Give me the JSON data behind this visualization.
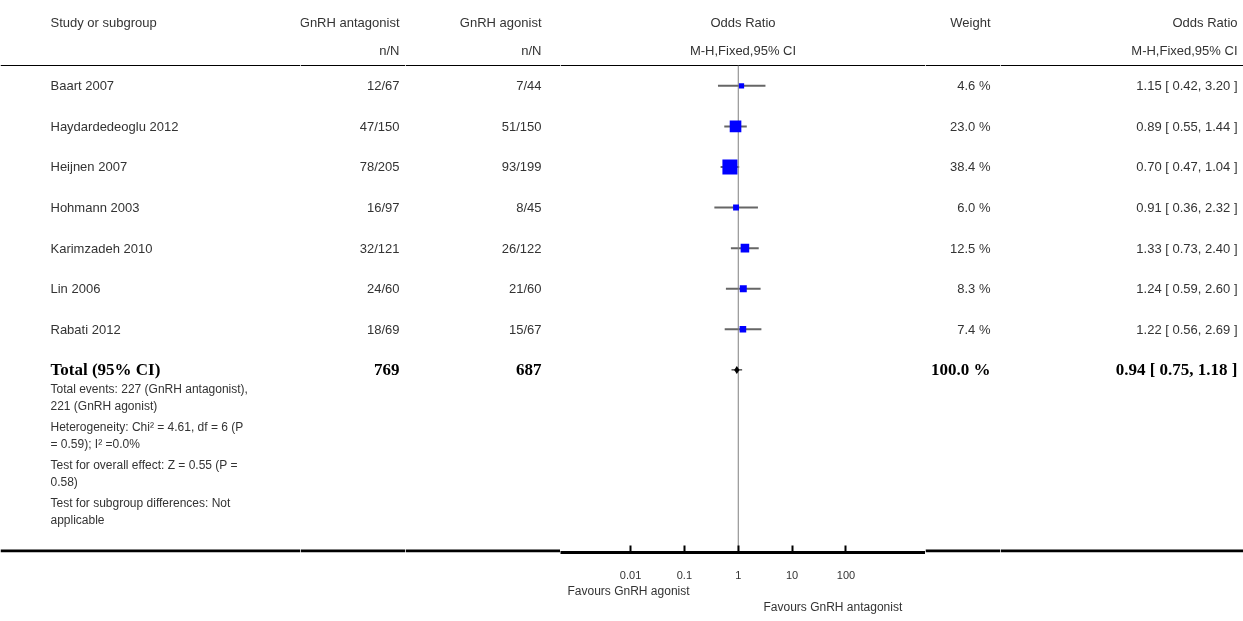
{
  "chart_data": [
    {
      "type": "other",
      "title": "Study or subgroup",
      "categories": [
        "Baart 2007",
        "Haydardedeoglu 2012",
        "Heijnen 2007",
        "Hohmann 2003",
        "Karimzadeh 2010",
        "Lin 2006",
        "Rabati 2012",
        "Total (95% CI)"
      ],
      "annotations": [
        "Total events: 227 (GnRH antagonist), 221 (GnRH agonist)",
        "Heterogeneity: Chi² = 4.61, df = 6 (P = 0.59); I² =0.0%",
        "Test for overall effect: Z = 0.55 (P = 0.58)",
        "Test for subgroup differences: Not applicable"
      ]
    },
    {
      "type": "other",
      "title": "GnRH antagonist",
      "subtitle": "n/N",
      "categories": [
        "12/67",
        "47/150",
        "78/205",
        "16/97",
        "32/121",
        "24/60",
        "18/69",
        "769"
      ]
    },
    {
      "type": "other",
      "title": "GnRH agonist",
      "subtitle": "n/N",
      "categories": [
        "7/44",
        "51/150",
        "93/199",
        "8/45",
        "26/122",
        "21/60",
        "15/67",
        "687"
      ]
    },
    {
      "type": "bubble",
      "title": "Odds Ratio",
      "subtitle": "M-H,Fixed,95% CI",
      "orientation": "horizontal",
      "log": "x",
      "marker": "square",
      "tick_labels": "x",
      "grid": false,
      "categories": [
        null,
        null,
        null,
        null,
        null,
        null,
        null,
        null,
        null,
        null,
        null,
        null
      ],
      "xlim": [
        0.0005,
        3000
      ],
      "xticks": [
        0.01,
        0.1,
        1,
        10,
        100
      ],
      "ref_lines": [
        {
          "axis": "x",
          "value": 1,
          "color": "#808080"
        }
      ],
      "annotations": [
        "Favours GnRH agonist",
        "Favours GnRH antagonist"
      ],
      "series": [
        {
          "type": "bubble",
          "color": "#0000ff",
          "values": [
            1.15,
            0.89,
            0.7,
            0.91,
            1.33,
            1.24,
            1.22,
            null,
            null,
            null,
            null,
            null
          ],
          "sizes": [
            0.12,
            0.6,
            1,
            0.156,
            0.326,
            0.216,
            0.193,
            null,
            null,
            null,
            null,
            null
          ],
          "errors": [
            [
              0.42,
              3.2
            ],
            [
              0.55,
              1.44
            ],
            [
              0.47,
              1.04
            ],
            [
              0.36,
              2.32
            ],
            [
              0.73,
              2.4
            ],
            [
              0.59,
              2.6
            ],
            [
              0.56,
              2.69
            ],
            null,
            null,
            null,
            null,
            null
          ]
        },
        {
          "type": "scatter",
          "marker": "diamond",
          "color": "#000000",
          "values": [
            null,
            null,
            null,
            null,
            null,
            null,
            null,
            0.94,
            null,
            null,
            null,
            null
          ],
          "errors": [
            null,
            null,
            null,
            null,
            null,
            null,
            null,
            [
              0.75,
              1.18
            ],
            null,
            null,
            null,
            null
          ]
        }
      ]
    },
    {
      "type": "other",
      "title": "Weight",
      "categories": [
        "4.6 %",
        "23.0 %",
        "38.4 %",
        "6.0 %",
        "12.5 %",
        "8.3 %",
        "7.4 %",
        "100.0 %"
      ]
    },
    {
      "type": "other",
      "title": "Odds Ratio",
      "subtitle": "M-H,Fixed,95% CI",
      "categories": [
        "1.15 [ 0.42, 3.20 ]",
        "0.89 [ 0.55, 1.44 ]",
        "0.70 [ 0.47, 1.04 ]",
        "0.91 [ 0.36, 2.32 ]",
        "1.33 [ 0.73, 2.40 ]",
        "1.24 [ 0.59, 2.60 ]",
        "1.22 [ 0.56, 2.69 ]",
        "0.94 [ 0.75, 1.18 ]"
      ]
    }
  ]
}
